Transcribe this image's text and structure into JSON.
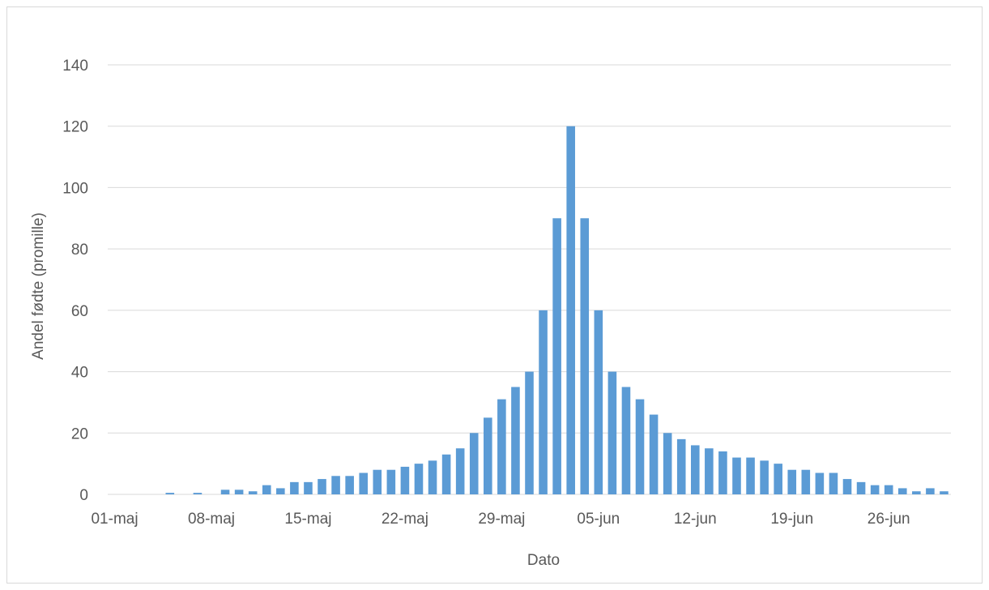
{
  "chart_data": {
    "type": "bar",
    "xlabel": "Dato",
    "ylabel": "Andel fødte (promille)",
    "ylim": [
      0,
      140
    ],
    "y_ticks": [
      0,
      20,
      40,
      60,
      80,
      100,
      120,
      140
    ],
    "x_tick_labels": [
      "01-maj",
      "08-maj",
      "15-maj",
      "22-maj",
      "29-maj",
      "05-jun",
      "12-jun",
      "19-jun",
      "26-jun"
    ],
    "grid": true,
    "bar_color": "#5b9bd5",
    "categories": [
      "01-maj",
      "02-maj",
      "03-maj",
      "04-maj",
      "05-maj",
      "06-maj",
      "07-maj",
      "08-maj",
      "09-maj",
      "10-maj",
      "11-maj",
      "12-maj",
      "13-maj",
      "14-maj",
      "15-maj",
      "16-maj",
      "17-maj",
      "18-maj",
      "19-maj",
      "20-maj",
      "21-maj",
      "22-maj",
      "23-maj",
      "24-maj",
      "25-maj",
      "26-maj",
      "27-maj",
      "28-maj",
      "29-maj",
      "30-maj",
      "31-maj",
      "01-jun",
      "02-jun",
      "03-jun",
      "04-jun",
      "05-jun",
      "06-jun",
      "07-jun",
      "08-jun",
      "09-jun",
      "10-jun",
      "11-jun",
      "12-jun",
      "13-jun",
      "14-jun",
      "15-jun",
      "16-jun",
      "17-jun",
      "18-jun",
      "19-jun",
      "20-jun",
      "21-jun",
      "22-jun",
      "23-jun",
      "24-jun",
      "25-jun",
      "26-jun",
      "27-jun",
      "28-jun",
      "29-jun",
      "30-jun"
    ],
    "values": [
      0,
      0,
      0,
      0,
      0.5,
      0,
      0.5,
      0,
      1.5,
      1.5,
      1,
      3,
      2,
      4,
      4,
      5,
      6,
      6,
      7,
      8,
      8,
      9,
      10,
      11,
      13,
      15,
      20,
      25,
      31,
      35,
      40,
      60,
      90,
      120,
      90,
      60,
      40,
      35,
      31,
      26,
      20,
      18,
      16,
      15,
      14,
      12,
      12,
      11,
      10,
      8,
      8,
      7,
      7,
      5,
      4,
      3,
      3,
      2,
      1,
      2,
      1
    ]
  }
}
